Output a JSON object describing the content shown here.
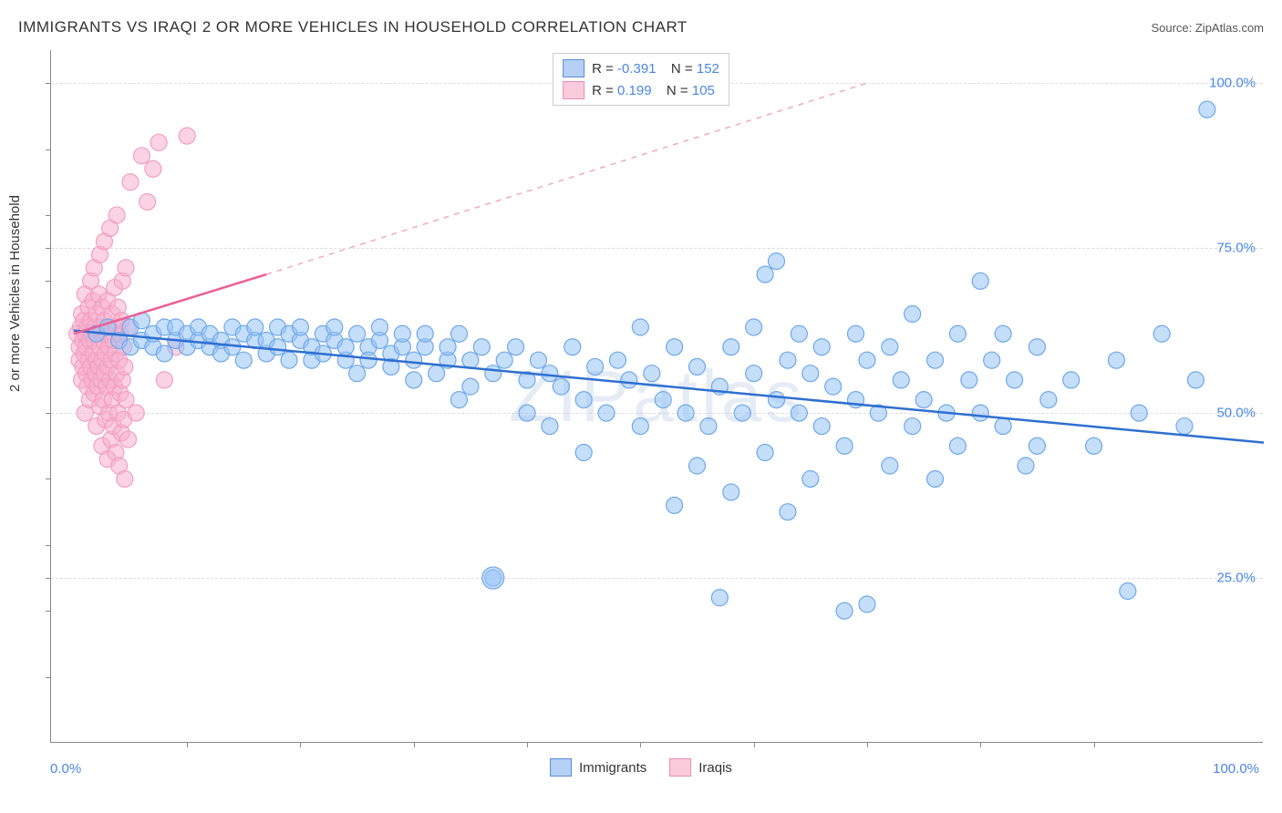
{
  "title": "IMMIGRANTS VS IRAQI 2 OR MORE VEHICLES IN HOUSEHOLD CORRELATION CHART",
  "source": "Source: ZipAtlas.com",
  "watermark": "ZIPatlas",
  "chart": {
    "type": "scatter",
    "y_axis_title": "2 or more Vehicles in Household",
    "x_min_label": "0.0%",
    "x_max_label": "100.0%",
    "xlim": [
      -2,
      105
    ],
    "ylim": [
      0,
      105
    ],
    "y_ticks": [
      25,
      50,
      75,
      100
    ],
    "y_tick_labels": [
      "25.0%",
      "50.0%",
      "75.0%",
      "100.0%"
    ],
    "x_minor_ticks": [
      10,
      20,
      30,
      40,
      50,
      60,
      70,
      80,
      90
    ],
    "y_minor_ticks": [
      10,
      20,
      30,
      40,
      60,
      70,
      80,
      90
    ],
    "background_color": "#ffffff",
    "grid_color": "#dcdcdc",
    "axis_color": "#888888",
    "label_color": "#4a86e8",
    "marker_radius": 9,
    "marker_radius_large": 12,
    "series": [
      {
        "name": "Immigrants",
        "color_fill": "rgba(150,195,245,0.55)",
        "color_stroke": "#6fa8e8",
        "R": "-0.391",
        "N": "152",
        "trend": {
          "x1": 0,
          "y1": 62.5,
          "x2": 105,
          "y2": 45.5,
          "color": "#2f6fd0",
          "width": 2.5,
          "dash": ""
        },
        "points": [
          [
            2,
            62
          ],
          [
            3,
            63
          ],
          [
            4,
            61
          ],
          [
            5,
            60
          ],
          [
            5,
            63
          ],
          [
            6,
            61
          ],
          [
            6,
            64
          ],
          [
            7,
            60
          ],
          [
            7,
            62
          ],
          [
            8,
            63
          ],
          [
            8,
            59
          ],
          [
            9,
            61
          ],
          [
            9,
            63
          ],
          [
            10,
            60
          ],
          [
            10,
            62
          ],
          [
            11,
            61
          ],
          [
            11,
            63
          ],
          [
            12,
            60
          ],
          [
            12,
            62
          ],
          [
            13,
            61
          ],
          [
            13,
            59
          ],
          [
            14,
            63
          ],
          [
            14,
            60
          ],
          [
            15,
            58
          ],
          [
            15,
            62
          ],
          [
            16,
            61
          ],
          [
            16,
            63
          ],
          [
            17,
            59
          ],
          [
            17,
            61
          ],
          [
            18,
            63
          ],
          [
            18,
            60
          ],
          [
            19,
            62
          ],
          [
            19,
            58
          ],
          [
            20,
            61
          ],
          [
            20,
            63
          ],
          [
            21,
            60
          ],
          [
            21,
            58
          ],
          [
            22,
            62
          ],
          [
            22,
            59
          ],
          [
            23,
            61
          ],
          [
            23,
            63
          ],
          [
            24,
            58
          ],
          [
            24,
            60
          ],
          [
            25,
            62
          ],
          [
            25,
            56
          ],
          [
            26,
            60
          ],
          [
            26,
            58
          ],
          [
            27,
            61
          ],
          [
            27,
            63
          ],
          [
            28,
            59
          ],
          [
            28,
            57
          ],
          [
            29,
            60
          ],
          [
            29,
            62
          ],
          [
            30,
            58
          ],
          [
            30,
            55
          ],
          [
            31,
            60
          ],
          [
            31,
            62
          ],
          [
            32,
            56
          ],
          [
            33,
            58
          ],
          [
            33,
            60
          ],
          [
            34,
            52
          ],
          [
            34,
            62
          ],
          [
            35,
            58
          ],
          [
            35,
            54
          ],
          [
            36,
            60
          ],
          [
            37,
            25
          ],
          [
            37,
            56
          ],
          [
            38,
            58
          ],
          [
            39,
            60
          ],
          [
            40,
            50
          ],
          [
            40,
            55
          ],
          [
            41,
            58
          ],
          [
            42,
            48
          ],
          [
            42,
            56
          ],
          [
            43,
            54
          ],
          [
            44,
            60
          ],
          [
            45,
            52
          ],
          [
            45,
            44
          ],
          [
            46,
            57
          ],
          [
            47,
            50
          ],
          [
            48,
            58
          ],
          [
            49,
            55
          ],
          [
            50,
            63
          ],
          [
            50,
            48
          ],
          [
            51,
            56
          ],
          [
            52,
            52
          ],
          [
            53,
            60
          ],
          [
            53,
            36
          ],
          [
            54,
            50
          ],
          [
            55,
            57
          ],
          [
            55,
            42
          ],
          [
            56,
            48
          ],
          [
            57,
            22
          ],
          [
            57,
            54
          ],
          [
            58,
            60
          ],
          [
            58,
            38
          ],
          [
            59,
            50
          ],
          [
            60,
            56
          ],
          [
            60,
            63
          ],
          [
            61,
            44
          ],
          [
            61,
            71
          ],
          [
            62,
            52
          ],
          [
            62,
            73
          ],
          [
            63,
            58
          ],
          [
            63,
            35
          ],
          [
            64,
            50
          ],
          [
            64,
            62
          ],
          [
            65,
            40
          ],
          [
            65,
            56
          ],
          [
            66,
            48
          ],
          [
            66,
            60
          ],
          [
            67,
            54
          ],
          [
            68,
            20
          ],
          [
            68,
            45
          ],
          [
            69,
            52
          ],
          [
            69,
            62
          ],
          [
            70,
            21
          ],
          [
            70,
            58
          ],
          [
            71,
            50
          ],
          [
            72,
            42
          ],
          [
            72,
            60
          ],
          [
            73,
            55
          ],
          [
            74,
            48
          ],
          [
            74,
            65
          ],
          [
            75,
            52
          ],
          [
            76,
            58
          ],
          [
            76,
            40
          ],
          [
            77,
            50
          ],
          [
            78,
            62
          ],
          [
            78,
            45
          ],
          [
            79,
            55
          ],
          [
            80,
            50
          ],
          [
            80,
            70
          ],
          [
            81,
            58
          ],
          [
            82,
            48
          ],
          [
            82,
            62
          ],
          [
            83,
            55
          ],
          [
            84,
            42
          ],
          [
            85,
            45
          ],
          [
            85,
            60
          ],
          [
            86,
            52
          ],
          [
            88,
            55
          ],
          [
            90,
            45
          ],
          [
            92,
            58
          ],
          [
            93,
            23
          ],
          [
            94,
            50
          ],
          [
            96,
            62
          ],
          [
            98,
            48
          ],
          [
            99,
            55
          ],
          [
            100,
            96
          ]
        ]
      },
      {
        "name": "Iraqis",
        "color_fill": "rgba(248,175,205,0.55)",
        "color_stroke": "#f0a0c0",
        "R": "0.199",
        "N": "105",
        "trend_solid": {
          "x1": 0,
          "y1": 62,
          "x2": 17,
          "y2": 71,
          "color": "#ec5f94",
          "width": 2.5
        },
        "trend_dash": {
          "x1": 17,
          "y1": 71,
          "x2": 70,
          "y2": 100,
          "color": "#f4a8c5",
          "width": 1.5
        },
        "points": [
          [
            0.3,
            62
          ],
          [
            0.5,
            58
          ],
          [
            0.5,
            60
          ],
          [
            0.6,
            63
          ],
          [
            0.7,
            55
          ],
          [
            0.7,
            65
          ],
          [
            0.8,
            57
          ],
          [
            0.8,
            61
          ],
          [
            0.9,
            59
          ],
          [
            0.9,
            64
          ],
          [
            1.0,
            50
          ],
          [
            1.0,
            62
          ],
          [
            1.0,
            68
          ],
          [
            1.1,
            56
          ],
          [
            1.1,
            60
          ],
          [
            1.2,
            54
          ],
          [
            1.2,
            63
          ],
          [
            1.3,
            58
          ],
          [
            1.3,
            66
          ],
          [
            1.4,
            52
          ],
          [
            1.4,
            61
          ],
          [
            1.5,
            57
          ],
          [
            1.5,
            64
          ],
          [
            1.5,
            70
          ],
          [
            1.6,
            55
          ],
          [
            1.6,
            62
          ],
          [
            1.7,
            59
          ],
          [
            1.7,
            67
          ],
          [
            1.8,
            53
          ],
          [
            1.8,
            61
          ],
          [
            1.8,
            72
          ],
          [
            1.9,
            56
          ],
          [
            1.9,
            63
          ],
          [
            2.0,
            48
          ],
          [
            2.0,
            58
          ],
          [
            2.0,
            65
          ],
          [
            2.1,
            54
          ],
          [
            2.1,
            62
          ],
          [
            2.2,
            57
          ],
          [
            2.2,
            68
          ],
          [
            2.3,
            51
          ],
          [
            2.3,
            60
          ],
          [
            2.3,
            74
          ],
          [
            2.4,
            55
          ],
          [
            2.4,
            63
          ],
          [
            2.5,
            45
          ],
          [
            2.5,
            58
          ],
          [
            2.5,
            66
          ],
          [
            2.6,
            52
          ],
          [
            2.6,
            61
          ],
          [
            2.7,
            56
          ],
          [
            2.7,
            64
          ],
          [
            2.7,
            76
          ],
          [
            2.8,
            49
          ],
          [
            2.8,
            59
          ],
          [
            2.9,
            54
          ],
          [
            2.9,
            62
          ],
          [
            3.0,
            43
          ],
          [
            3.0,
            57
          ],
          [
            3.0,
            67
          ],
          [
            3.1,
            50
          ],
          [
            3.1,
            60
          ],
          [
            3.2,
            55
          ],
          [
            3.2,
            63
          ],
          [
            3.2,
            78
          ],
          [
            3.3,
            46
          ],
          [
            3.3,
            58
          ],
          [
            3.4,
            52
          ],
          [
            3.4,
            65
          ],
          [
            3.5,
            48
          ],
          [
            3.5,
            61
          ],
          [
            3.6,
            54
          ],
          [
            3.6,
            69
          ],
          [
            3.7,
            44
          ],
          [
            3.7,
            59
          ],
          [
            3.8,
            56
          ],
          [
            3.8,
            63
          ],
          [
            3.8,
            80
          ],
          [
            3.9,
            50
          ],
          [
            3.9,
            66
          ],
          [
            4.0,
            42
          ],
          [
            4.0,
            58
          ],
          [
            4.1,
            53
          ],
          [
            4.1,
            62
          ],
          [
            4.2,
            47
          ],
          [
            4.2,
            64
          ],
          [
            4.3,
            55
          ],
          [
            4.3,
            70
          ],
          [
            4.4,
            49
          ],
          [
            4.4,
            60
          ],
          [
            4.5,
            40
          ],
          [
            4.5,
            57
          ],
          [
            4.6,
            52
          ],
          [
            4.6,
            72
          ],
          [
            4.8,
            46
          ],
          [
            4.8,
            63
          ],
          [
            5.0,
            85
          ],
          [
            5.5,
            50
          ],
          [
            6.0,
            89
          ],
          [
            6.5,
            82
          ],
          [
            7.0,
            87
          ],
          [
            7.5,
            91
          ],
          [
            8.0,
            55
          ],
          [
            9.0,
            60
          ],
          [
            10.0,
            92
          ]
        ]
      }
    ]
  },
  "legend_bottom": [
    {
      "label": "Immigrants",
      "swatch": "blue"
    },
    {
      "label": "Iraqis",
      "swatch": "pink"
    }
  ]
}
